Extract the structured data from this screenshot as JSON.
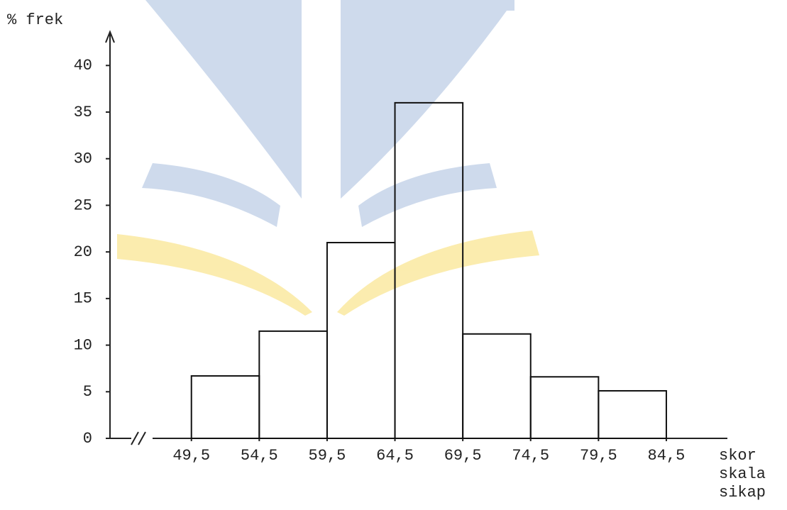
{
  "chart_data": {
    "type": "histogram",
    "ylabel": "% frek",
    "xlabel": [
      "skor",
      "skala",
      "sikap"
    ],
    "bins": [
      49.5,
      54.5,
      59.5,
      64.5,
      69.5,
      74.5,
      79.5,
      84.5
    ],
    "values": [
      6.7,
      11.5,
      21,
      36,
      11.2,
      6.6,
      5.1
    ],
    "color": "#111111",
    "xlim": [
      43.5,
      89
    ],
    "ylim": [
      0,
      43.6
    ],
    "xticks": [
      {
        "value": 49.5,
        "label": "49,5"
      },
      {
        "value": 54.5,
        "label": "54,5"
      },
      {
        "value": 59.5,
        "label": "59,5"
      },
      {
        "value": 64.5,
        "label": "64,5"
      },
      {
        "value": 69.5,
        "label": "69,5"
      },
      {
        "value": 74.5,
        "label": "74,5"
      },
      {
        "value": 79.5,
        "label": "79,5"
      },
      {
        "value": 84.5,
        "label": "84,5"
      }
    ],
    "yticks": [
      0,
      5,
      10,
      15,
      20,
      25,
      30,
      35,
      40
    ],
    "grid": false
  }
}
